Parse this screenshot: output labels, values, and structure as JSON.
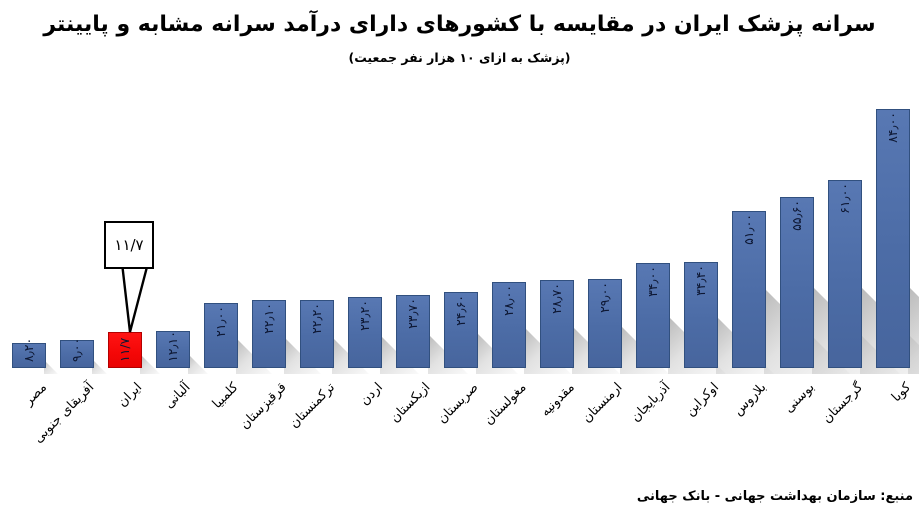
{
  "header": {
    "title": "سرانه پزشک ایران در مقایسه با کشورهای دارای درآمد سرانه مشابه و پایینتر",
    "subtitle": "(پزشک به ازای ۱۰ هزار نفر جمعیت)"
  },
  "callout": {
    "label": "۱۱/۷"
  },
  "footer": {
    "source": "منبع: سازمان بهداشت جهانی - بانک جهانی"
  },
  "colors": {
    "bar_fill": "#4C6CA6",
    "bar_border": "#31507F",
    "highlight_fill": "#F40707",
    "highlight_border": "#B30000",
    "value_text": "#0D1733",
    "shadow": "#8C8C8C"
  },
  "chart_data": {
    "type": "bar",
    "title": "سرانه پزشک ایران در مقایسه با کشورهای دارای درآمد سرانه مشابه و پایینتر",
    "subtitle": "(پزشک به ازای ۱۰ هزار نفر جمعیت)",
    "xlabel": "",
    "ylabel": "پزشک به ازای ۱۰ هزار نفر جمعیت",
    "ylim": [
      0,
      90
    ],
    "grid": false,
    "legend": false,
    "categories": [
      "مصر",
      "آفریقای جنوبی",
      "ایران",
      "آلبانی",
      "کلمبیا",
      "قرقیزستان",
      "ترکمنستان",
      "اردن",
      "ازبکستان",
      "صربستان",
      "مغولستان",
      "مقدونیه",
      "ارمنستان",
      "آذربایجان",
      "اوکراین",
      "بلاروس",
      "بوسنی",
      "گرجستان",
      "کوبا"
    ],
    "values": [
      8.2,
      9.0,
      11.7,
      12.1,
      21.0,
      22.1,
      22.2,
      23.2,
      23.7,
      24.6,
      28.0,
      28.7,
      29.0,
      34.0,
      34.4,
      51.0,
      55.6,
      61.0,
      84.0
    ],
    "value_labels": [
      "۸٫۲۰",
      "۹٫۰۰",
      "۱۱/۷",
      "۱۲٫۱۰",
      "۲۱٫۰۰",
      "۲۲٫۱۰",
      "۲۲٫۲۰",
      "۲۳٫۲۰",
      "۲۳٫۷۰",
      "۲۴٫۶۰",
      "۲۸٫۰۰",
      "۲۸٫۷۰",
      "۲۹٫۰۰",
      "۳۴٫۰۰",
      "۳۴٫۴۰",
      "۵۱٫۰۰",
      "۵۵٫۶۰",
      "۶۱٫۰۰",
      "۸۴٫۰۰"
    ],
    "highlight_index": 2,
    "highlight_annotation": "۱۱/۷",
    "source": "منبع: سازمان بهداشت جهانی - بانک جهانی"
  }
}
